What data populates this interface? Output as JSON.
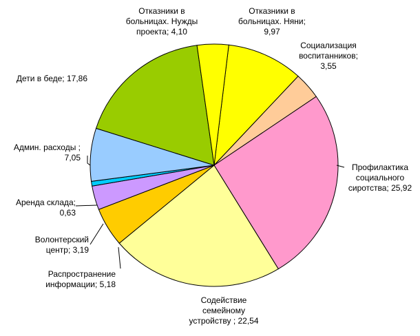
{
  "chart_data": {
    "type": "pie",
    "title": "",
    "slices": [
      {
        "name": "Отказники в больницах. Няни",
        "value": 9.97,
        "label": [
          "Отказники в",
          "больницах. Няни;",
          "9,97"
        ],
        "color": "#FFFF00"
      },
      {
        "name": "Социализация воспитанников",
        "value": 3.55,
        "label": [
          "Социализация",
          "воспитанников;",
          "3,55"
        ],
        "color": "#FFCC99"
      },
      {
        "name": "Профилактика социального сиротства",
        "value": 25.92,
        "label": [
          "Профилактика",
          "социального",
          "сиротства; 25,92"
        ],
        "color": "#FF99CC"
      },
      {
        "name": "Содействие семейному устройству",
        "value": 22.54,
        "label": [
          "Содействие",
          "семейному",
          "устройству ; 22,54"
        ],
        "color": "#FFFF99"
      },
      {
        "name": "Распространение информации",
        "value": 5.18,
        "label": [
          "Распространение",
          "информации; 5,18"
        ],
        "color": "#FFCC00"
      },
      {
        "name": "Волонтерский центр",
        "value": 3.19,
        "label": [
          "Волонтерский",
          "центр; 3,19"
        ],
        "color": "#CC99FF"
      },
      {
        "name": "Аренда склада",
        "value": 0.63,
        "label": [
          "Аренда склада;",
          "0,63"
        ],
        "color": "#00CCFF"
      },
      {
        "name": "Админ. расходы",
        "value": 7.05,
        "label": [
          "Админ. расходы ;",
          "7,05"
        ],
        "color": "#99CCFF"
      },
      {
        "name": "Дети в беде",
        "value": 17.86,
        "label": [
          "Дети в беде; 17,86"
        ],
        "color": "#99CC00"
      },
      {
        "name": "Отказники в больницах. Нужды проекта",
        "value": 4.1,
        "label": [
          "Отказники в",
          "больницах. Нужды",
          "проекта; 4,10"
        ],
        "color": "#FFFF00"
      }
    ]
  }
}
